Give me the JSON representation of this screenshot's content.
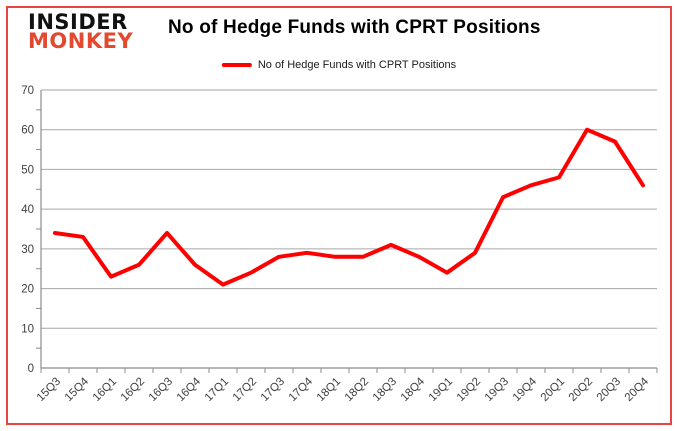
{
  "logo": {
    "line1": "INSIDER",
    "line2": "MONKEY"
  },
  "header": {
    "title": "No of Hedge Funds with CPRT Positions"
  },
  "legend": {
    "label": "No of Hedge Funds with CPRT Positions"
  },
  "colors": {
    "border": "#e94442",
    "grid": "#a6a6a6",
    "axis": "#8c8c8c",
    "tick_label": "#3f3f3f",
    "logo_black": "#111111",
    "logo_monkey": "#e2492f",
    "line": "#ff0000"
  },
  "chart_data": {
    "type": "line",
    "title": "No of Hedge Funds with CPRT Positions",
    "categories": [
      "15Q3",
      "15Q4",
      "16Q1",
      "16Q2",
      "16Q3",
      "16Q4",
      "17Q1",
      "17Q2",
      "17Q3",
      "17Q4",
      "18Q1",
      "18Q2",
      "18Q3",
      "18Q4",
      "19Q1",
      "19Q2",
      "19Q3",
      "19Q4",
      "20Q1",
      "20Q2",
      "20Q3",
      "20Q4"
    ],
    "series": [
      {
        "name": "No of Hedge Funds with CPRT Positions",
        "color": "#ff0000",
        "values": [
          34,
          33,
          23,
          26,
          34,
          26,
          21,
          24,
          28,
          29,
          28,
          28,
          31,
          28,
          24,
          29,
          43,
          46,
          48,
          60,
          57,
          46
        ]
      }
    ],
    "xlabel": "",
    "ylabel": "",
    "ylim": [
      0,
      70
    ],
    "yticks": [
      0,
      10,
      20,
      30,
      40,
      50,
      60,
      70
    ],
    "minor_ytick_interval": 5,
    "grid": true,
    "legend_position": "top"
  }
}
